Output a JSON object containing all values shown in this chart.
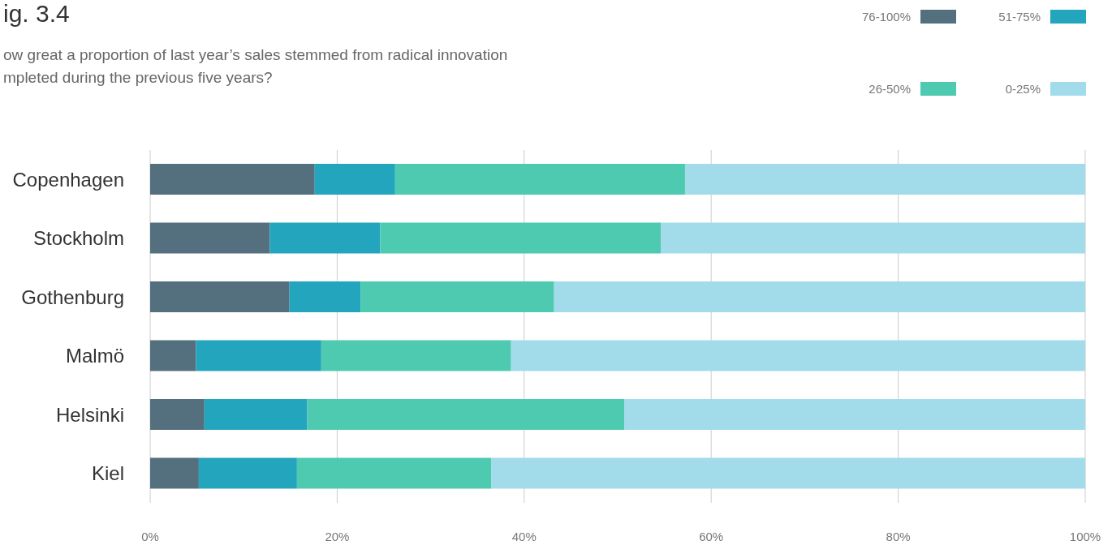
{
  "chart_data": {
    "type": "bar",
    "orientation": "horizontal",
    "stacked": true,
    "title": "ig. 3.4",
    "subtitle": "ow great a proportion of last year’s sales stemmed from radical innovation\nmpleted during the previous five years?",
    "categories": [
      "Copenhagen",
      "Stockholm",
      "Gothenburg",
      "Malmö",
      "Helsinki",
      "Kiel"
    ],
    "series": [
      {
        "name": "76-100%",
        "color": "#546f7e",
        "values": [
          17.6,
          12.8,
          14.9,
          4.9,
          5.8,
          5.2
        ]
      },
      {
        "name": "51-75%",
        "color": "#22a5bd",
        "values": [
          8.6,
          11.8,
          7.6,
          13.4,
          11.0,
          10.5
        ]
      },
      {
        "name": "26-50%",
        "color": "#4ecab0",
        "values": [
          31.0,
          30.0,
          20.7,
          20.3,
          33.9,
          20.8
        ]
      },
      {
        "name": "0-25%",
        "color": "#a2dbea",
        "values": [
          42.8,
          45.4,
          56.8,
          61.4,
          49.3,
          63.5
        ]
      }
    ],
    "xlim": [
      0,
      100
    ],
    "xticks": [
      {
        "value": 0,
        "label": "0%"
      },
      {
        "value": 20,
        "label": "20%"
      },
      {
        "value": 40,
        "label": "40%"
      },
      {
        "value": 60,
        "label": "60%"
      },
      {
        "value": 80,
        "label": "80%"
      },
      {
        "value": 100,
        "label": "100%"
      }
    ],
    "grid": "x",
    "legend": "top right"
  }
}
